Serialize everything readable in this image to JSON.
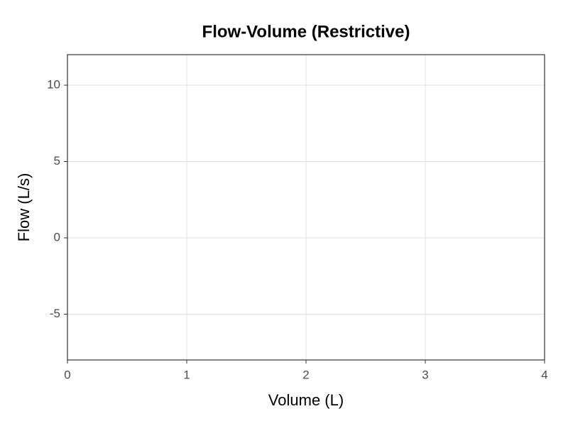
{
  "chart_data": {
    "type": "line",
    "title": "Flow-Volume (Restrictive)",
    "x_label": "Volume (L)",
    "y_label": "Flow (L/s)",
    "series": [],
    "xlim": [
      0,
      4
    ],
    "xticks": [
      0,
      1,
      2,
      3,
      4
    ],
    "ylim": [
      -8,
      12
    ],
    "yticks": [
      -5,
      0,
      5,
      10
    ],
    "grid": true
  }
}
